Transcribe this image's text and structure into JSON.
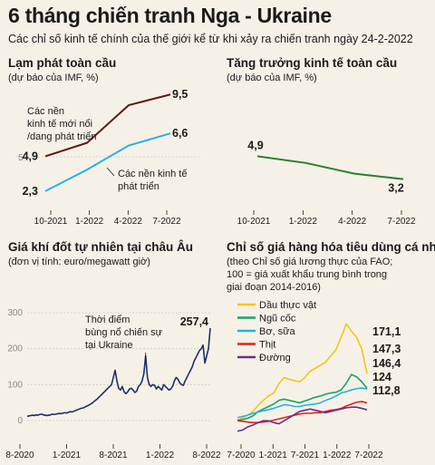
{
  "header": {
    "title": "6 tháng chiến tranh Nga - Ukraine",
    "subtitle": "Các chỉ số kinh tế chính của thế giới kể từ khi xảy ra chiến tranh ngày 24-2-2022"
  },
  "chart_data": [
    {
      "type": "line",
      "title": "Lạm phát toàn cầu",
      "subtitle": "(dự báo của IMF, %)",
      "categories": [
        "10-2021",
        "1-2022",
        "4-2022",
        "7-2022"
      ],
      "yticks": [
        5
      ],
      "ylim": [
        0,
        11
      ],
      "series": [
        {
          "name": "Các nền kinh tế mới nổi /dang phát triển",
          "values": [
            4.9,
            5.9,
            8.7,
            9.5
          ],
          "color": "#5b1a12",
          "start_label": "4,9",
          "end_label": "9,5"
        },
        {
          "name": "Các nền kinh tế phát triển",
          "values": [
            2.3,
            3.9,
            5.7,
            6.6
          ],
          "color": "#29b0e6",
          "start_label": "2,3",
          "end_label": "6,6"
        }
      ]
    },
    {
      "type": "line",
      "title": "Tăng trưởng kinh tế toàn cầu",
      "subtitle": "(dự báo của IMF, %)",
      "categories": [
        "10-2021",
        "1-2022",
        "4-2022",
        "7-2022"
      ],
      "ylim": [
        0,
        11
      ],
      "series": [
        {
          "values": [
            4.9,
            4.4,
            3.6,
            3.2
          ],
          "color": "#2e7d32",
          "start_label": "4,9",
          "end_label": "3,2"
        }
      ]
    },
    {
      "type": "line",
      "title": "Giá khí đốt tự nhiên tại châu Âu",
      "subtitle": "(đơn vị tính: euro/megawatt giờ)",
      "xticks": [
        "8-2020",
        "1-2021",
        "8-2021",
        "1-2022",
        "8-2022"
      ],
      "yticks": [
        0,
        100,
        200,
        300
      ],
      "ylim": [
        0,
        300
      ],
      "annotation": [
        "Thời điểm",
        "bùng nổ chiến sự",
        "tại Ukraine"
      ],
      "end_label": "257,4",
      "series": [
        {
          "color": "#1d2f6f",
          "values": [
            12,
            13,
            14,
            15,
            14,
            16,
            15,
            17,
            18,
            16,
            15,
            14,
            15,
            16,
            18,
            17,
            18,
            19,
            20,
            19,
            21,
            22,
            21,
            23,
            25,
            24,
            26,
            28,
            30,
            32,
            34,
            35,
            37,
            40,
            42,
            45,
            48,
            52,
            56,
            60,
            65,
            70,
            75,
            80,
            85,
            90,
            95,
            100,
            120,
            140,
            110,
            90,
            85,
            95,
            80,
            75,
            80,
            88,
            90,
            85,
            78,
            82,
            95,
            100,
            110,
            130,
            180,
            120,
            100,
            95,
            100,
            98,
            88,
            95,
            90,
            85,
            100,
            95,
            90,
            85,
            88,
            95,
            110,
            120,
            115,
            105,
            100,
            98,
            110,
            120,
            130,
            140,
            150,
            165,
            175,
            185,
            195,
            200,
            210,
            160,
            180,
            200,
            257.4
          ]
        }
      ]
    },
    {
      "type": "line",
      "title": "Chỉ số giá hàng hóa tiêu dùng cá nhân",
      "subtitle": [
        "(theo Chỉ số giá lương thực của FAO;",
        "100 = giá xuất khẩu trung bình trong",
        "giai đoạn 2014-2016)"
      ],
      "xticks": [
        "7-2020",
        "1-2021",
        "7-2021",
        "1-2022",
        "7-2022"
      ],
      "ylim": [
        60,
        270
      ],
      "series": [
        {
          "name": "Dầu thực vật",
          "color": "#f5c518",
          "end_label": "171,1",
          "values": [
            95,
            100,
            104,
            110,
            120,
            128,
            135,
            140,
            155,
            165,
            162,
            160,
            158,
            165,
            175,
            180,
            185,
            190,
            200,
            210,
            230,
            252,
            240,
            230,
            211,
            171.1
          ]
        },
        {
          "name": "Ngũ cốc",
          "color": "#1aa36b",
          "end_label": "147,3",
          "values": [
            96,
            97,
            99,
            103,
            110,
            114,
            118,
            122,
            128,
            130,
            128,
            126,
            124,
            127,
            130,
            133,
            135,
            138,
            140,
            141,
            145,
            156,
            170,
            166,
            158,
            147.3
          ]
        },
        {
          "name": "Bơ, sữa",
          "color": "#29b0e6",
          "end_label": "146,4",
          "values": [
            100,
            102,
            104,
            107,
            109,
            111,
            113,
            115,
            118,
            121,
            120,
            118,
            118,
            120,
            121,
            122,
            124,
            128,
            131,
            135,
            140,
            142,
            145,
            147,
            148,
            146.4
          ]
        },
        {
          "name": "Thịt",
          "color": "#e32219",
          "end_label": "124",
          "values": [
            95,
            94,
            93,
            92,
            92,
            93,
            94,
            96,
            98,
            100,
            102,
            104,
            106,
            107,
            107,
            108,
            108,
            110,
            112,
            113,
            115,
            119,
            122,
            125,
            126,
            124
          ]
        },
        {
          "name": "Đường",
          "color": "#6a2c91",
          "end_label": "112,8",
          "values": [
            78,
            80,
            85,
            88,
            92,
            95,
            95,
            92,
            90,
            95,
            100,
            105,
            110,
            112,
            114,
            112,
            110,
            108,
            110,
            112,
            114,
            116,
            117,
            117,
            115,
            112.8
          ]
        }
      ]
    }
  ]
}
